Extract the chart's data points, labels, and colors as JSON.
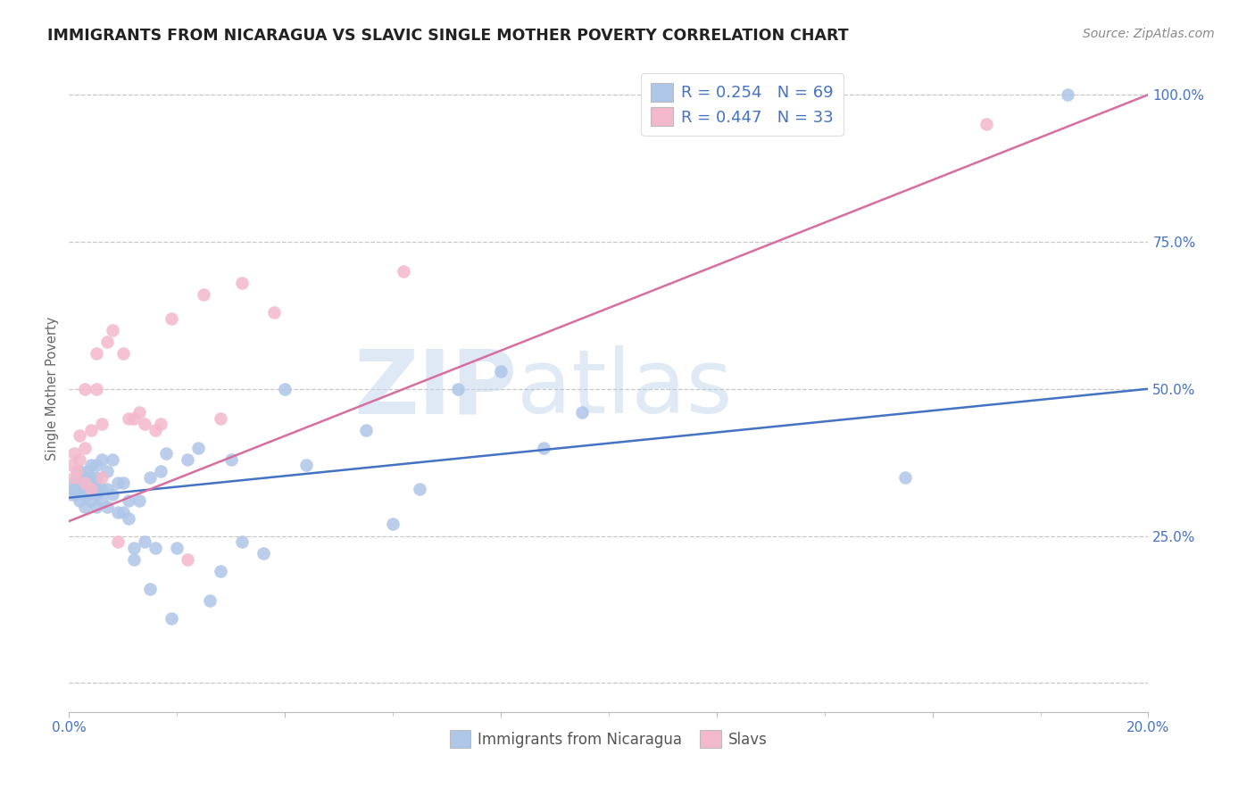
{
  "title": "IMMIGRANTS FROM NICARAGUA VS SLAVIC SINGLE MOTHER POVERTY CORRELATION CHART",
  "source": "Source: ZipAtlas.com",
  "ylabel": "Single Mother Poverty",
  "x_min": 0.0,
  "x_max": 0.2,
  "y_min": -0.05,
  "y_max": 1.05,
  "x_ticks": [
    0.0,
    0.04,
    0.08,
    0.12,
    0.16,
    0.2
  ],
  "x_tick_labels": [
    "0.0%",
    "",
    "",
    "",
    "",
    "20.0%"
  ],
  "y_ticks": [
    0.0,
    0.25,
    0.5,
    0.75,
    1.0
  ],
  "y_tick_labels": [
    "",
    "25.0%",
    "50.0%",
    "75.0%",
    "100.0%"
  ],
  "blue_color": "#aec6e8",
  "pink_color": "#f4b8cc",
  "blue_line_color": "#4472c4",
  "pink_line_color": "#d66fa0",
  "tick_label_color": "#4472c4",
  "watermark_zip": "ZIP",
  "watermark_atlas": "atlas",
  "legend_label_blue": "R = 0.254   N = 69",
  "legend_label_pink": "R = 0.447   N = 33",
  "blue_scatter_x": [
    0.0005,
    0.001,
    0.001,
    0.0015,
    0.0015,
    0.002,
    0.002,
    0.002,
    0.0025,
    0.0025,
    0.003,
    0.003,
    0.003,
    0.003,
    0.0035,
    0.0035,
    0.004,
    0.004,
    0.004,
    0.004,
    0.0045,
    0.005,
    0.005,
    0.005,
    0.005,
    0.005,
    0.006,
    0.006,
    0.006,
    0.007,
    0.007,
    0.007,
    0.008,
    0.008,
    0.009,
    0.009,
    0.01,
    0.01,
    0.011,
    0.011,
    0.012,
    0.012,
    0.013,
    0.014,
    0.015,
    0.015,
    0.016,
    0.017,
    0.018,
    0.019,
    0.02,
    0.022,
    0.024,
    0.026,
    0.028,
    0.03,
    0.032,
    0.036,
    0.04,
    0.044,
    0.055,
    0.06,
    0.065,
    0.072,
    0.08,
    0.088,
    0.095,
    0.155,
    0.185
  ],
  "blue_scatter_y": [
    0.32,
    0.33,
    0.34,
    0.32,
    0.35,
    0.31,
    0.33,
    0.36,
    0.33,
    0.35,
    0.3,
    0.32,
    0.34,
    0.35,
    0.32,
    0.36,
    0.31,
    0.33,
    0.35,
    0.37,
    0.33,
    0.3,
    0.32,
    0.33,
    0.35,
    0.37,
    0.31,
    0.33,
    0.38,
    0.3,
    0.33,
    0.36,
    0.32,
    0.38,
    0.29,
    0.34,
    0.29,
    0.34,
    0.28,
    0.31,
    0.21,
    0.23,
    0.31,
    0.24,
    0.16,
    0.35,
    0.23,
    0.36,
    0.39,
    0.11,
    0.23,
    0.38,
    0.4,
    0.14,
    0.19,
    0.38,
    0.24,
    0.22,
    0.5,
    0.37,
    0.43,
    0.27,
    0.33,
    0.5,
    0.53,
    0.4,
    0.46,
    0.35,
    1.0
  ],
  "pink_scatter_x": [
    0.0005,
    0.001,
    0.001,
    0.0015,
    0.002,
    0.002,
    0.003,
    0.003,
    0.003,
    0.004,
    0.004,
    0.005,
    0.005,
    0.006,
    0.006,
    0.007,
    0.008,
    0.009,
    0.01,
    0.011,
    0.012,
    0.013,
    0.014,
    0.016,
    0.017,
    0.019,
    0.022,
    0.025,
    0.028,
    0.032,
    0.038,
    0.062,
    0.17
  ],
  "pink_scatter_y": [
    0.37,
    0.35,
    0.39,
    0.36,
    0.38,
    0.42,
    0.34,
    0.4,
    0.5,
    0.33,
    0.43,
    0.5,
    0.56,
    0.35,
    0.44,
    0.58,
    0.6,
    0.24,
    0.56,
    0.45,
    0.45,
    0.46,
    0.44,
    0.43,
    0.44,
    0.62,
    0.21,
    0.66,
    0.45,
    0.68,
    0.63,
    0.7,
    0.95
  ],
  "blue_trend_x": [
    0.0,
    0.2
  ],
  "blue_trend_y": [
    0.315,
    0.5
  ],
  "pink_trend_x": [
    0.0,
    0.2
  ],
  "pink_trend_y": [
    0.275,
    1.0
  ],
  "background_color": "#ffffff",
  "grid_color": "#c8c8c8",
  "title_fontsize": 12.5,
  "label_fontsize": 10.5,
  "tick_fontsize": 11
}
